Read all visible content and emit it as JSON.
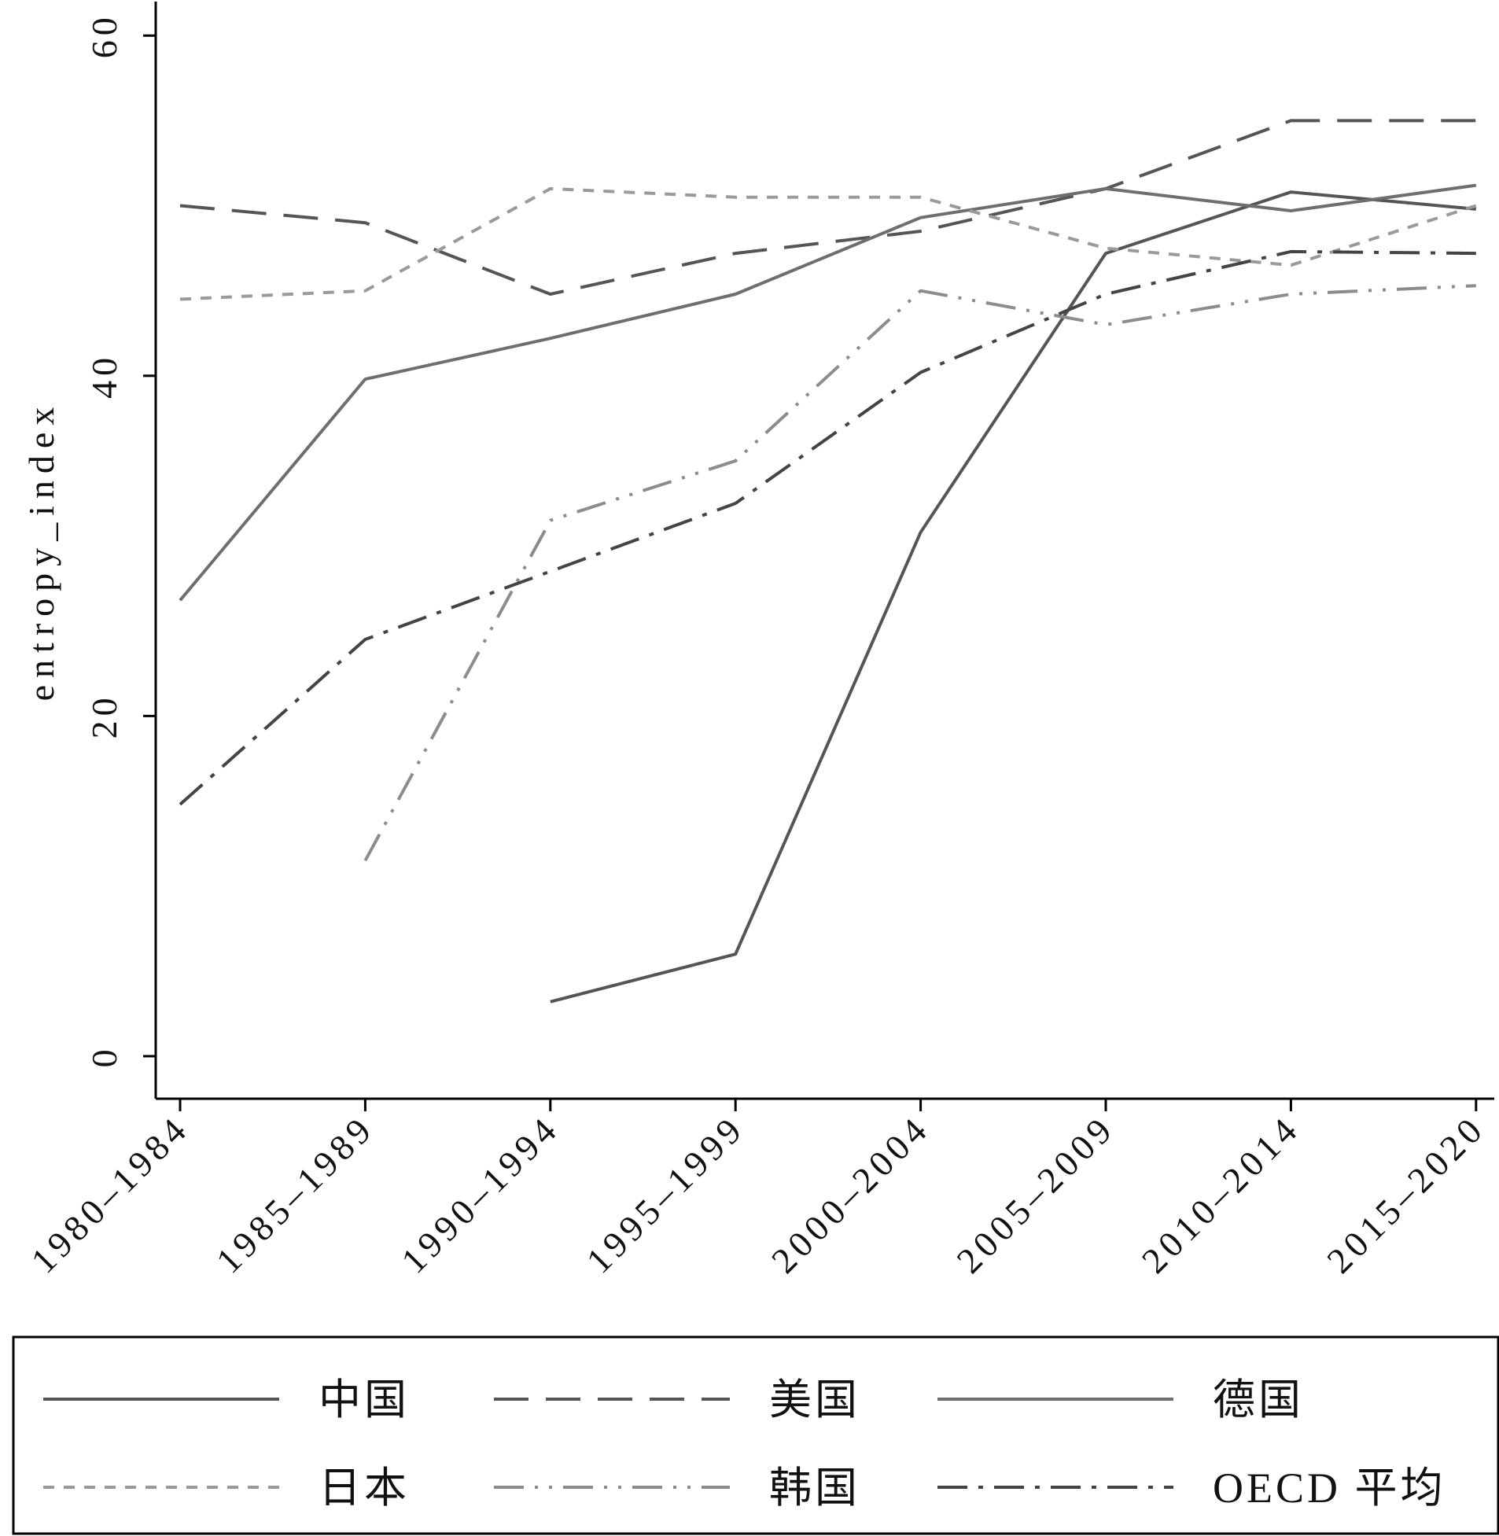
{
  "chart_data": {
    "type": "line",
    "categories": [
      "1980–1984",
      "1985–1989",
      "1990–1994",
      "1995–1999",
      "2000–2004",
      "2005–2009",
      "2010–2014",
      "2015–2020"
    ],
    "ylabel": "entropy_index",
    "xlabel": "",
    "ylim": [
      -2.5,
      62
    ],
    "yticks": [
      0,
      20,
      40,
      60
    ],
    "grid": false,
    "legend_position": "bottom",
    "series": [
      {
        "name": "中国",
        "style": "solid",
        "color": "#555555",
        "values": [
          null,
          null,
          3.2,
          6.0,
          30.8,
          47.2,
          50.8,
          49.8
        ]
      },
      {
        "name": "美国",
        "style": "longdash",
        "color": "#555555",
        "values": [
          50.0,
          49.0,
          44.8,
          47.2,
          48.5,
          51.0,
          55.0,
          55.0
        ]
      },
      {
        "name": "德国",
        "style": "solid",
        "color": "#6e6e6e",
        "values": [
          26.8,
          39.8,
          42.2,
          44.8,
          49.3,
          51.0,
          49.7,
          51.2
        ]
      },
      {
        "name": "日本",
        "style": "shortdash",
        "color": "#9a9a9a",
        "values": [
          44.5,
          45.0,
          51.0,
          50.5,
          50.5,
          47.5,
          46.5,
          50.0
        ]
      },
      {
        "name": "韩国",
        "style": "dashdotdot",
        "color": "#8c8c8c",
        "values": [
          null,
          11.5,
          31.5,
          35.0,
          45.0,
          43.0,
          44.8,
          45.3
        ]
      },
      {
        "name": "OECD 平均",
        "style": "dashdot",
        "color": "#444444",
        "values": [
          14.8,
          24.5,
          28.5,
          32.5,
          40.2,
          44.8,
          47.3,
          47.2
        ]
      }
    ]
  }
}
